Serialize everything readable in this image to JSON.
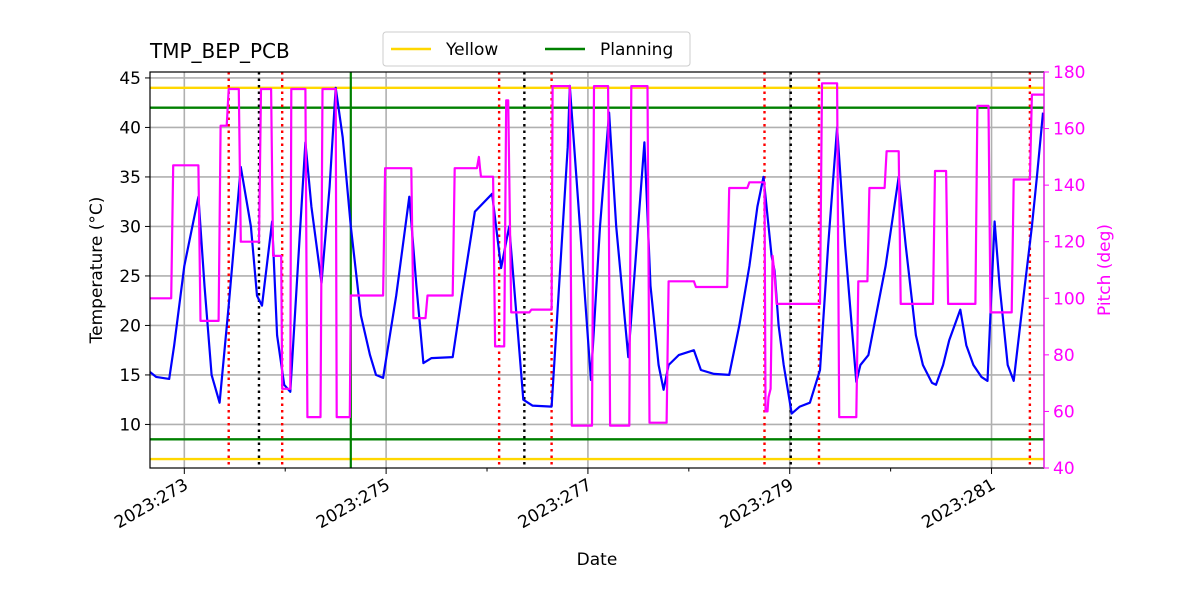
{
  "chart_data": {
    "type": "line",
    "title": "TMP_BEP_PCB",
    "xlabel": "Date",
    "ylabel": "Temperature ($^\\circ$C)",
    "ylabel_display": "Temperature (°C)",
    "y2label": "Pitch (deg)",
    "xlim": [
      272.66,
      281.52
    ],
    "ylim": [
      5.6,
      45.6
    ],
    "y2lim": [
      40,
      180
    ],
    "x_ticks": [
      273,
      275,
      277,
      279,
      281
    ],
    "x_tick_labels": [
      "2023:273",
      "2023:275",
      "2023:277",
      "2023:279",
      "2023:281"
    ],
    "y_ticks": [
      10,
      15,
      20,
      25,
      30,
      35,
      40,
      45
    ],
    "y2_ticks": [
      40,
      60,
      80,
      100,
      120,
      140,
      160,
      180
    ],
    "grid": true,
    "legend": {
      "placement": "top-center",
      "entries": [
        {
          "name": "Yellow",
          "color": "#ffd700"
        },
        {
          "name": "Planning",
          "color": "#008000"
        }
      ]
    },
    "limit_lines": [
      {
        "name": "Yellow",
        "color": "#ffd700",
        "values": [
          44.0,
          6.5
        ]
      },
      {
        "name": "Planning",
        "color": "#008000",
        "values": [
          42.0,
          8.5
        ]
      }
    ],
    "planning_vline": {
      "x": 274.65,
      "color": "#008000"
    },
    "red_dotted_vlines": [
      273.44,
      273.97,
      276.12,
      276.64,
      278.75,
      279.29,
      281.38
    ],
    "black_dotted_vlines": [
      273.74,
      276.37,
      279.01
    ],
    "series": [
      {
        "name": "Temperature",
        "axis": "left",
        "color": "#0000ff",
        "points": [
          [
            272.66,
            15.3
          ],
          [
            272.72,
            14.8
          ],
          [
            272.85,
            14.6
          ],
          [
            272.9,
            18
          ],
          [
            273.0,
            26
          ],
          [
            273.14,
            33
          ],
          [
            273.2,
            24
          ],
          [
            273.27,
            15
          ],
          [
            273.35,
            12.2
          ],
          [
            273.44,
            22
          ],
          [
            273.56,
            36
          ],
          [
            273.66,
            30
          ],
          [
            273.72,
            23
          ],
          [
            273.77,
            22
          ],
          [
            273.87,
            30.5
          ],
          [
            273.92,
            19
          ],
          [
            273.99,
            14
          ],
          [
            274.05,
            13.3
          ],
          [
            274.12,
            25
          ],
          [
            274.2,
            38.5
          ],
          [
            274.26,
            32
          ],
          [
            274.36,
            24.3
          ],
          [
            274.44,
            34
          ],
          [
            274.5,
            44
          ],
          [
            274.57,
            39
          ],
          [
            274.65,
            30
          ],
          [
            274.75,
            21
          ],
          [
            274.84,
            17
          ],
          [
            274.9,
            15
          ],
          [
            274.97,
            14.7
          ],
          [
            275.1,
            23
          ],
          [
            275.23,
            33
          ],
          [
            275.3,
            24
          ],
          [
            275.37,
            16.2
          ],
          [
            275.45,
            16.7
          ],
          [
            275.66,
            16.8
          ],
          [
            275.75,
            23
          ],
          [
            275.88,
            31.5
          ],
          [
            276.05,
            33.3
          ],
          [
            276.14,
            25.8
          ],
          [
            276.22,
            30
          ],
          [
            276.3,
            20
          ],
          [
            276.36,
            12.5
          ],
          [
            276.45,
            11.9
          ],
          [
            276.64,
            11.8
          ],
          [
            276.8,
            38
          ],
          [
            276.82,
            44.2
          ],
          [
            276.9,
            33
          ],
          [
            277.03,
            14.5
          ],
          [
            277.12,
            30
          ],
          [
            277.21,
            41.5
          ],
          [
            277.28,
            30
          ],
          [
            277.4,
            16.8
          ],
          [
            277.56,
            38.5
          ],
          [
            277.62,
            24
          ],
          [
            277.7,
            16
          ],
          [
            277.75,
            13.5
          ],
          [
            277.8,
            16
          ],
          [
            277.9,
            17
          ],
          [
            278.05,
            17.5
          ],
          [
            278.12,
            15.5
          ],
          [
            278.25,
            15.1
          ],
          [
            278.4,
            15
          ],
          [
            278.5,
            20
          ],
          [
            278.6,
            26
          ],
          [
            278.68,
            32
          ],
          [
            278.74,
            35
          ],
          [
            278.82,
            27
          ],
          [
            278.85,
            25.5
          ],
          [
            278.89,
            20
          ],
          [
            278.94,
            16
          ],
          [
            279.02,
            11.1
          ],
          [
            279.1,
            11.8
          ],
          [
            279.2,
            12.2
          ],
          [
            279.3,
            15.5
          ],
          [
            279.38,
            28
          ],
          [
            279.47,
            40
          ],
          [
            279.55,
            28
          ],
          [
            279.66,
            14.3
          ],
          [
            279.7,
            16
          ],
          [
            279.78,
            17
          ],
          [
            279.95,
            26
          ],
          [
            280.08,
            35
          ],
          [
            280.15,
            28
          ],
          [
            280.25,
            19
          ],
          [
            280.32,
            16
          ],
          [
            280.41,
            14.2
          ],
          [
            280.45,
            14
          ],
          [
            280.52,
            16
          ],
          [
            280.58,
            18.5
          ],
          [
            280.69,
            21.6
          ],
          [
            280.75,
            18
          ],
          [
            280.82,
            16
          ],
          [
            280.9,
            14.8
          ],
          [
            280.96,
            14.4
          ],
          [
            281.03,
            30.5
          ],
          [
            281.08,
            24
          ],
          [
            281.16,
            16
          ],
          [
            281.22,
            14.4
          ],
          [
            281.33,
            24
          ],
          [
            281.4,
            30
          ],
          [
            281.45,
            35
          ],
          [
            281.51,
            41.5
          ]
        ]
      },
      {
        "name": "Pitch",
        "axis": "right",
        "color": "#ff00ff",
        "points": [
          [
            272.66,
            100
          ],
          [
            272.87,
            100
          ],
          [
            272.89,
            147
          ],
          [
            273.14,
            147
          ],
          [
            273.16,
            92
          ],
          [
            273.34,
            92
          ],
          [
            273.36,
            161
          ],
          [
            273.42,
            161
          ],
          [
            273.44,
            174
          ],
          [
            273.54,
            174
          ],
          [
            273.56,
            120
          ],
          [
            273.74,
            120
          ],
          [
            273.76,
            174
          ],
          [
            273.86,
            174
          ],
          [
            273.88,
            115
          ],
          [
            273.96,
            115
          ],
          [
            273.97,
            68
          ],
          [
            274.05,
            68
          ],
          [
            274.06,
            174
          ],
          [
            274.2,
            174
          ],
          [
            274.22,
            58
          ],
          [
            274.35,
            58
          ],
          [
            274.37,
            174
          ],
          [
            274.5,
            174
          ],
          [
            274.51,
            58
          ],
          [
            274.64,
            58
          ],
          [
            274.65,
            101
          ],
          [
            274.97,
            101
          ],
          [
            274.99,
            146
          ],
          [
            275.25,
            146
          ],
          [
            275.27,
            93
          ],
          [
            275.39,
            93
          ],
          [
            275.41,
            101
          ],
          [
            275.66,
            101
          ],
          [
            275.68,
            146
          ],
          [
            275.9,
            146
          ],
          [
            275.92,
            150
          ],
          [
            275.93,
            146
          ],
          [
            275.94,
            143
          ],
          [
            276.06,
            143
          ],
          [
            276.08,
            83
          ],
          [
            276.17,
            83
          ],
          [
            276.19,
            170
          ],
          [
            276.21,
            170
          ],
          [
            276.24,
            95
          ],
          [
            276.42,
            95
          ],
          [
            276.44,
            96
          ],
          [
            276.64,
            96
          ],
          [
            276.65,
            175
          ],
          [
            276.82,
            175
          ],
          [
            276.84,
            55
          ],
          [
            277.04,
            55
          ],
          [
            277.06,
            175
          ],
          [
            277.2,
            175
          ],
          [
            277.22,
            55
          ],
          [
            277.41,
            55
          ],
          [
            277.43,
            175
          ],
          [
            277.59,
            175
          ],
          [
            277.61,
            56
          ],
          [
            277.78,
            56
          ],
          [
            277.8,
            106
          ],
          [
            278.05,
            106
          ],
          [
            278.07,
            104
          ],
          [
            278.38,
            104
          ],
          [
            278.4,
            139
          ],
          [
            278.58,
            139
          ],
          [
            278.6,
            141
          ],
          [
            278.75,
            141
          ],
          [
            278.76,
            60
          ],
          [
            278.78,
            60
          ],
          [
            278.79,
            65
          ],
          [
            278.81,
            68
          ],
          [
            278.83,
            115
          ],
          [
            278.85,
            108
          ],
          [
            278.87,
            98
          ],
          [
            279.3,
            98
          ],
          [
            279.32,
            176
          ],
          [
            279.47,
            176
          ],
          [
            279.49,
            58
          ],
          [
            279.66,
            58
          ],
          [
            279.68,
            106
          ],
          [
            279.77,
            106
          ],
          [
            279.79,
            139
          ],
          [
            279.94,
            139
          ],
          [
            279.96,
            152
          ],
          [
            280.08,
            152
          ],
          [
            280.1,
            98
          ],
          [
            280.42,
            98
          ],
          [
            280.44,
            145
          ],
          [
            280.55,
            145
          ],
          [
            280.57,
            98
          ],
          [
            280.84,
            98
          ],
          [
            280.86,
            168
          ],
          [
            280.97,
            168
          ],
          [
            280.99,
            95
          ],
          [
            281.2,
            95
          ],
          [
            281.22,
            142
          ],
          [
            281.38,
            142
          ],
          [
            281.4,
            172
          ],
          [
            281.52,
            172
          ]
        ]
      }
    ]
  }
}
